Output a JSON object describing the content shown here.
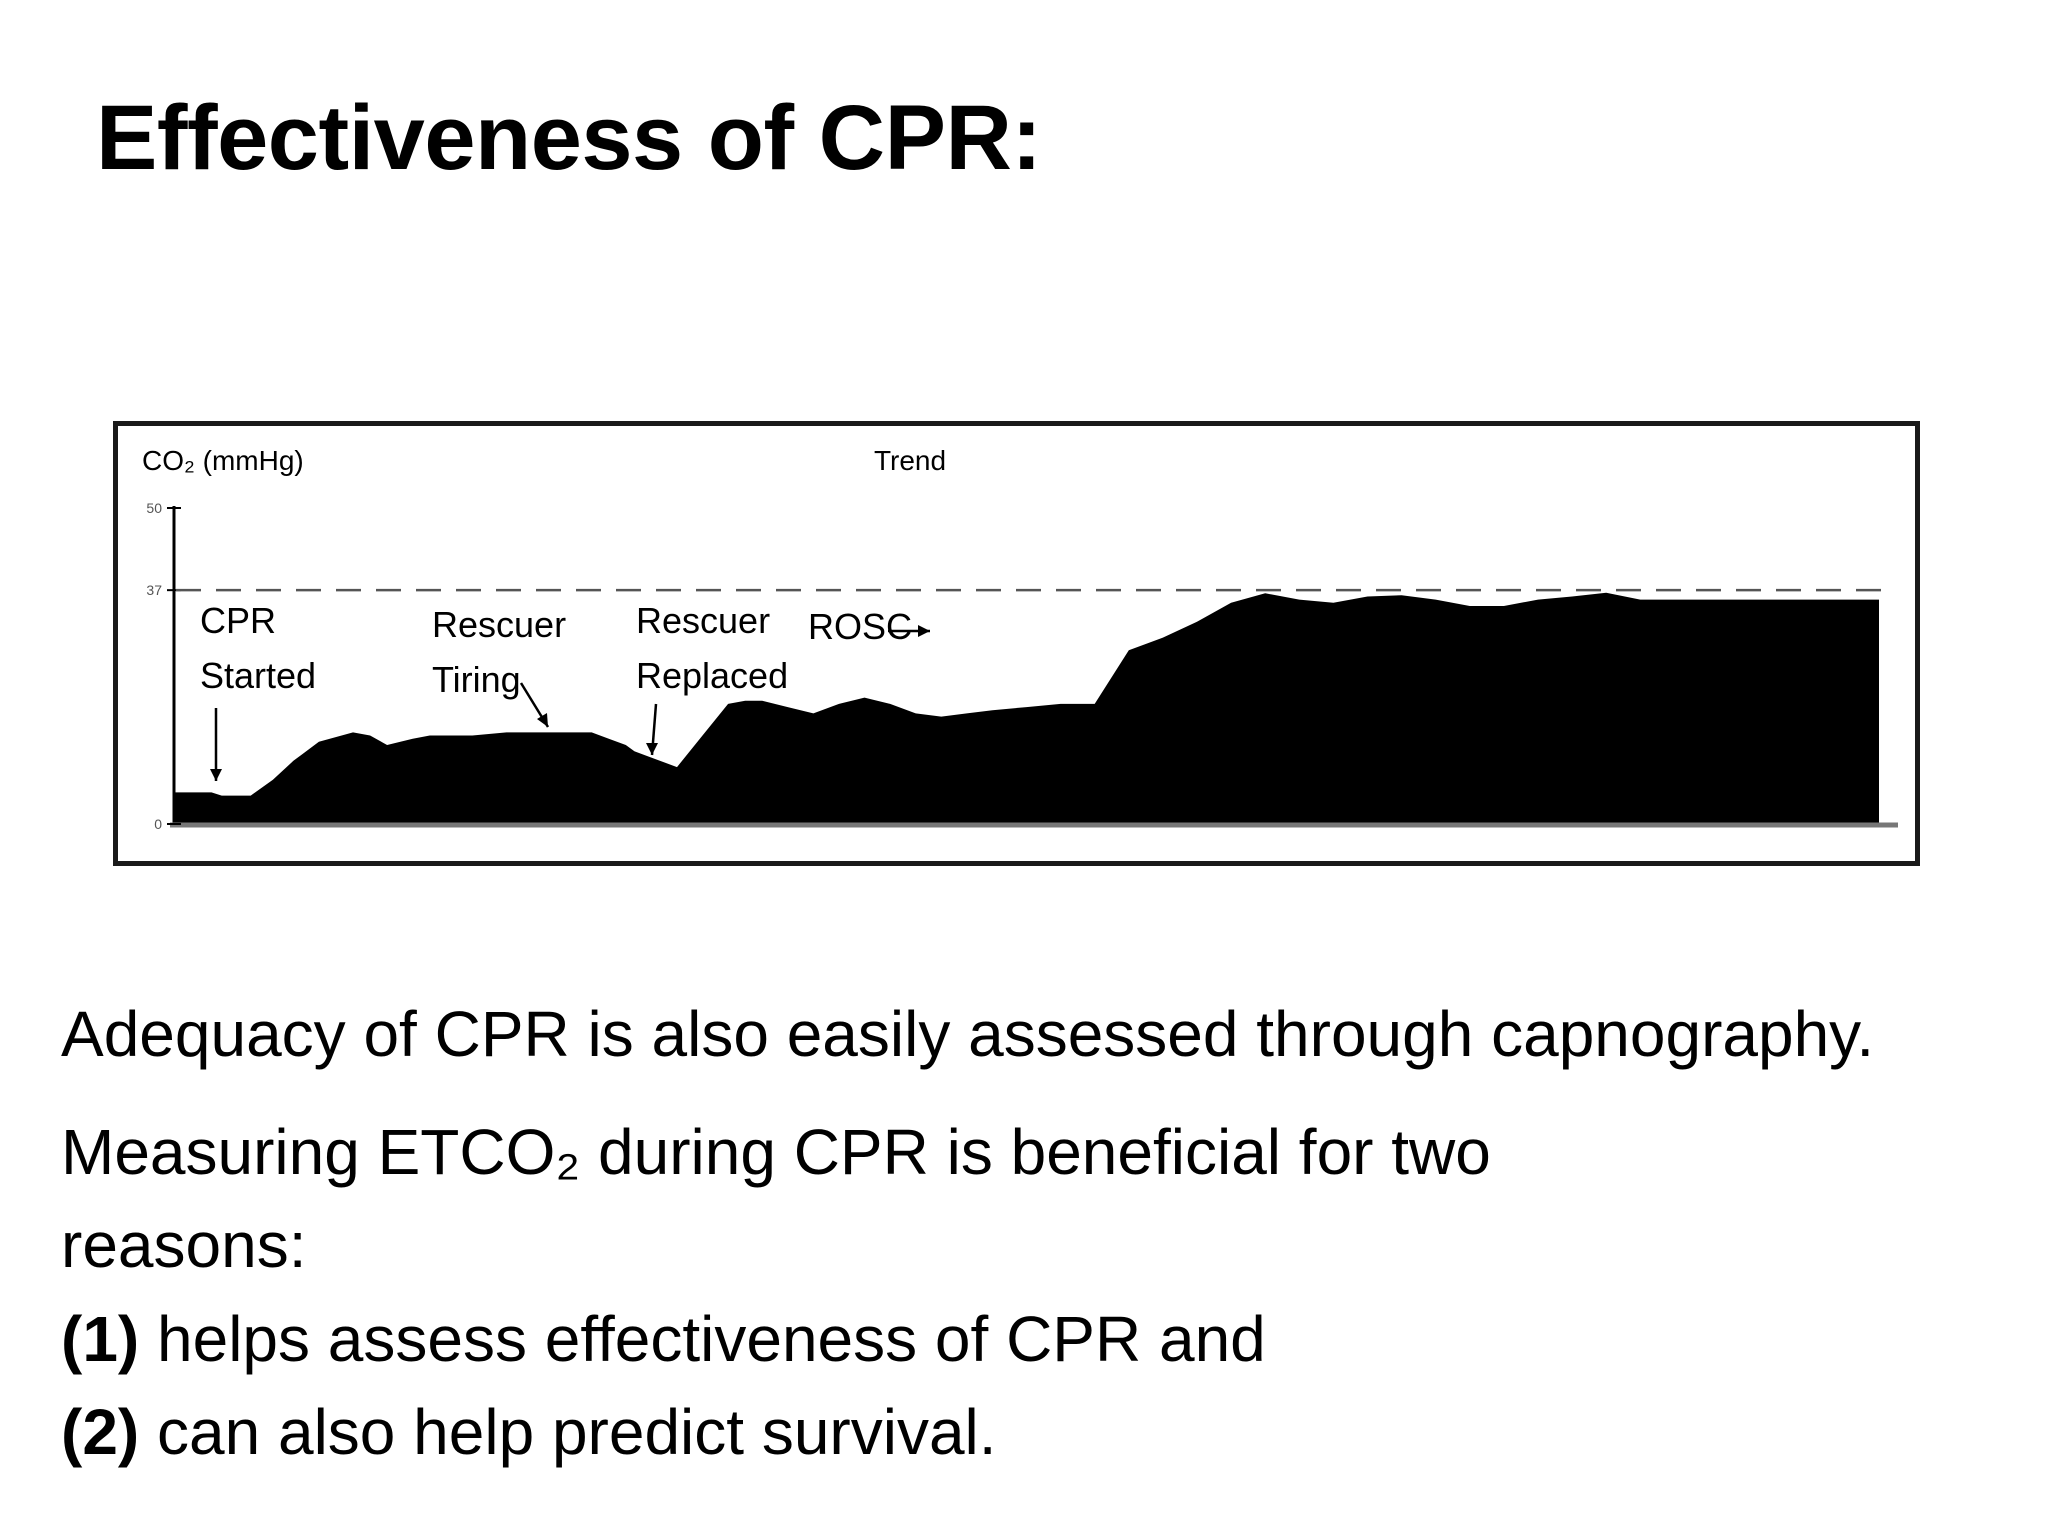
{
  "slide": {
    "title": "Effectiveness of CPR:"
  },
  "chart_data": {
    "type": "area",
    "title": "Trend",
    "ylabel": "CO₂ (mmHg)",
    "ylim": [
      0,
      50
    ],
    "yticks": [
      "50",
      "37",
      "0"
    ],
    "reference_line": {
      "value": 37,
      "style": "dashed"
    },
    "fill_color": "#000000",
    "x": [
      0,
      1.5,
      2.2,
      2.8,
      3.5,
      4.5,
      5.8,
      7,
      7.5,
      8.5,
      10.5,
      11.5,
      12.5,
      14,
      15,
      17.5,
      19.5,
      21,
      22,
      23,
      24.5,
      25.5,
      26.5,
      27,
      28,
      29.5,
      31,
      32.5,
      33.5,
      34.5,
      36,
      37.5,
      39,
      40.5,
      42,
      43.5,
      45,
      46.5,
      48,
      50,
      52,
      54,
      56,
      58,
      60,
      62,
      64,
      66,
      68,
      70,
      72,
      74,
      76,
      78,
      80,
      82,
      84,
      86,
      88,
      90,
      92,
      94,
      96,
      98,
      100
    ],
    "y": [
      5,
      5,
      5,
      4.5,
      4.5,
      4.5,
      7,
      10,
      11,
      13,
      14.5,
      14,
      12.5,
      13.5,
      14,
      14,
      14.5,
      14.5,
      14.5,
      14.5,
      14.5,
      13.5,
      12.5,
      11.5,
      10.5,
      9,
      14,
      19,
      19.5,
      19.5,
      18.5,
      17.5,
      19,
      20,
      19,
      17.5,
      17,
      17.5,
      18,
      18.5,
      19,
      19,
      27.5,
      29.5,
      32,
      35,
      36.5,
      35.5,
      35,
      36,
      36.2,
      35.5,
      34.5,
      34.5,
      35.5,
      36,
      36.6,
      35.5,
      35.5,
      35.5,
      35.5,
      35.5,
      35.5,
      35.5,
      35.5
    ],
    "annotations": [
      {
        "text": "CPR Started",
        "lines": [
          "CPR",
          "Started"
        ],
        "x": 2.2,
        "y": 4.5
      },
      {
        "text": "Rescuer Tiring",
        "lines": [
          "Rescuer",
          "Tiring"
        ],
        "x": 21.5,
        "y": 14.5
      },
      {
        "text": "Rescuer Replaced",
        "lines": [
          "Rescuer",
          "Replaced"
        ],
        "x": 27,
        "y": 9
      },
      {
        "text": "ROSC",
        "lines": [
          "ROSC"
        ],
        "x": 56,
        "y": 29
      }
    ],
    "legend": "none",
    "grid": false
  },
  "body": {
    "line1": "Adequacy of CPR is also easily assessed through capnography.",
    "line2_a": "Measuring ETCO",
    "line2_sub": "₂",
    "line2_b": " during CPR is beneficial for two",
    "line3": "reasons:",
    "item1_num": "(1)",
    "item1_text": " helps assess effectiveness of CPR and",
    "item2_num": "(2)",
    "item2_text": " can also help predict survival."
  }
}
